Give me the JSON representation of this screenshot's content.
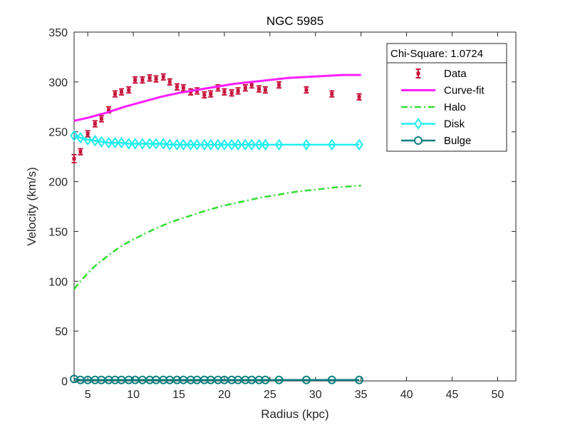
{
  "chart_data": {
    "type": "line",
    "title": "NGC 5985",
    "xlabel": "Radius (kpc)",
    "ylabel": "Velocity (km/s)",
    "xlim": [
      3.5,
      52
    ],
    "ylim": [
      0,
      350
    ],
    "xticks": [
      5,
      10,
      15,
      20,
      25,
      30,
      35,
      40,
      45,
      50
    ],
    "yticks": [
      0,
      50,
      100,
      150,
      200,
      250,
      300,
      350
    ],
    "grid": false,
    "legend_position": "top-right",
    "legend_header": "Chi-Square: 1.0724",
    "series": [
      {
        "name": "Data",
        "style": "errorbar",
        "color": "#c8143c",
        "x": [
          3.5,
          4.2,
          5.0,
          5.8,
          6.5,
          7.3,
          8.0,
          8.7,
          9.5,
          10.2,
          11.0,
          11.8,
          12.5,
          13.3,
          14.0,
          14.8,
          15.5,
          16.3,
          17.0,
          17.8,
          18.5,
          19.3,
          20.0,
          20.8,
          21.5,
          22.3,
          23.0,
          23.8,
          24.5,
          26.0,
          29.0,
          31.8,
          34.8
        ],
        "y": [
          223,
          230,
          248,
          258,
          263,
          272,
          288,
          290,
          292,
          302,
          302,
          304,
          303,
          305,
          300,
          295,
          294,
          290,
          291,
          287,
          288,
          294,
          290,
          289,
          291,
          294,
          297,
          293,
          292,
          297,
          292,
          288,
          285
        ],
        "err": [
          4,
          3,
          3,
          3,
          3,
          3,
          3,
          3,
          3,
          3,
          3,
          3,
          3,
          3,
          3,
          3,
          3,
          3,
          3,
          3,
          3,
          3,
          3,
          3,
          3,
          3,
          3,
          3,
          3,
          3,
          3,
          3,
          3
        ]
      },
      {
        "name": "Curve-fit",
        "style": "line",
        "color": "#ff1eff",
        "x": [
          3.5,
          5,
          7,
          9,
          11,
          13,
          15,
          17,
          19,
          21,
          23,
          25,
          27,
          29,
          31,
          33,
          35
        ],
        "y": [
          261,
          264,
          269,
          275,
          280,
          285,
          289,
          292,
          295,
          298,
          300,
          302,
          304,
          305,
          306,
          307,
          307
        ]
      },
      {
        "name": "Halo",
        "style": "dashdot",
        "color": "#33dd33",
        "x": [
          3.5,
          4,
          5,
          6,
          7,
          8,
          9,
          10,
          12,
          14,
          16,
          18,
          20,
          22,
          24,
          26,
          28,
          30,
          32,
          35
        ],
        "y": [
          92,
          98,
          108,
          117,
          124,
          131,
          137,
          142,
          151,
          159,
          165,
          171,
          176,
          180,
          184,
          187,
          190,
          192,
          194,
          196
        ]
      },
      {
        "name": "Disk",
        "style": "line-diamond",
        "color": "#22eeee",
        "x": [
          3.5,
          4.2,
          5.0,
          5.8,
          6.5,
          7.3,
          8.0,
          8.7,
          9.5,
          10.2,
          11.0,
          11.8,
          12.5,
          13.3,
          14.0,
          14.8,
          15.5,
          16.3,
          17.0,
          17.8,
          18.5,
          19.3,
          20.0,
          20.8,
          21.5,
          22.3,
          23.0,
          23.8,
          24.5,
          26.0,
          29.0,
          31.8,
          34.8
        ],
        "y": [
          246,
          244,
          242,
          241,
          240,
          239,
          239,
          239,
          238,
          238,
          238,
          238,
          238,
          238,
          237,
          237,
          237,
          237,
          237,
          237,
          237,
          237,
          237,
          237,
          237,
          237,
          237,
          237,
          237,
          237,
          237,
          237,
          237
        ]
      },
      {
        "name": "Bulge",
        "style": "line-circle",
        "color": "#0e7f7f",
        "x": [
          3.5,
          4.2,
          5.0,
          5.8,
          6.5,
          7.3,
          8.0,
          8.7,
          9.5,
          10.2,
          11.0,
          11.8,
          12.5,
          13.3,
          14.0,
          14.8,
          15.5,
          16.3,
          17.0,
          17.8,
          18.5,
          19.3,
          20.0,
          20.8,
          21.5,
          22.3,
          23.0,
          23.8,
          24.5,
          26.0,
          29.0,
          31.8,
          34.8
        ],
        "y": [
          2,
          1,
          1,
          1,
          1,
          1,
          1,
          1,
          1,
          1,
          1,
          1,
          1,
          1,
          1,
          1,
          1,
          1,
          1,
          1,
          1,
          1,
          1,
          1,
          1,
          1,
          1,
          1,
          1,
          1,
          1,
          1,
          1
        ]
      }
    ]
  }
}
